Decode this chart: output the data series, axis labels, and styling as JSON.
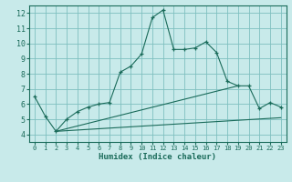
{
  "xlabel": "Humidex (Indice chaleur)",
  "ylabel": "",
  "background_color": "#c8eaea",
  "grid_color": "#7fbfbf",
  "line_color": "#1a6b5a",
  "xlim": [
    -0.5,
    23.5
  ],
  "ylim": [
    3.5,
    12.5
  ],
  "xticks": [
    0,
    1,
    2,
    3,
    4,
    5,
    6,
    7,
    8,
    9,
    10,
    11,
    12,
    13,
    14,
    15,
    16,
    17,
    18,
    19,
    20,
    21,
    22,
    23
  ],
  "yticks": [
    4,
    5,
    6,
    7,
    8,
    9,
    10,
    11,
    12
  ],
  "main_x": [
    0,
    1,
    2,
    3,
    4,
    5,
    6,
    7,
    8,
    9,
    10,
    11,
    12,
    13,
    14,
    15,
    16,
    17,
    18,
    19,
    20,
    21,
    22,
    23
  ],
  "main_y": [
    6.5,
    5.2,
    4.2,
    5.0,
    5.5,
    5.8,
    6.0,
    6.1,
    8.1,
    8.5,
    9.3,
    11.7,
    12.2,
    9.6,
    9.6,
    9.7,
    10.1,
    9.4,
    7.5,
    7.2,
    7.2,
    5.7,
    6.1,
    5.8
  ],
  "line2_x": [
    2,
    19
  ],
  "line2_y": [
    4.2,
    7.2
  ],
  "line3_x": [
    2,
    23
  ],
  "line3_y": [
    4.2,
    5.1
  ]
}
